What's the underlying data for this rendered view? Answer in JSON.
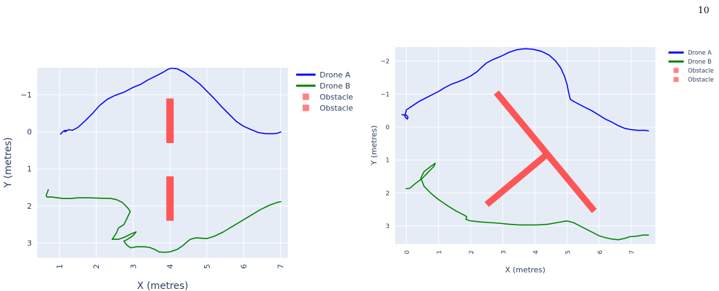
{
  "page_number": "10",
  "chart_data": [
    {
      "type": "line",
      "xlabel": "X (metres)",
      "ylabel": "Y (metres)",
      "xlim": [
        0.4,
        7.2
      ],
      "ylim": [
        3.4,
        -1.73
      ],
      "x_ticks": [
        1,
        2,
        3,
        4,
        5,
        6,
        7
      ],
      "y_ticks": [
        -1,
        0,
        1,
        2,
        3
      ],
      "y_tick_labels": [
        "−1",
        "0",
        "1",
        "2",
        "3"
      ],
      "x_tick_labels_rotated": true,
      "plot_bg": "#e5ecf6",
      "grid": true,
      "legend": "top-right, outside plot",
      "series": [
        {
          "name": "Drone A",
          "color": "#0000ff",
          "points": [
            [
              1.02,
              0.07
            ],
            [
              1.06,
              0.03
            ],
            [
              1.1,
              -0.01
            ],
            [
              1.15,
              -0.04
            ],
            [
              1.2,
              -0.03
            ],
            [
              1.15,
              0.0
            ],
            [
              1.25,
              -0.06
            ],
            [
              1.35,
              -0.04
            ],
            [
              1.5,
              -0.12
            ],
            [
              1.7,
              -0.3
            ],
            [
              1.9,
              -0.5
            ],
            [
              2.1,
              -0.72
            ],
            [
              2.3,
              -0.88
            ],
            [
              2.5,
              -0.98
            ],
            [
              2.75,
              -1.07
            ],
            [
              3.0,
              -1.2
            ],
            [
              3.2,
              -1.28
            ],
            [
              3.4,
              -1.4
            ],
            [
              3.6,
              -1.5
            ],
            [
              3.8,
              -1.6
            ],
            [
              3.95,
              -1.69
            ],
            [
              4.05,
              -1.72
            ],
            [
              4.2,
              -1.7
            ],
            [
              4.4,
              -1.6
            ],
            [
              4.6,
              -1.45
            ],
            [
              4.8,
              -1.3
            ],
            [
              5.0,
              -1.1
            ],
            [
              5.2,
              -0.9
            ],
            [
              5.4,
              -0.68
            ],
            [
              5.6,
              -0.48
            ],
            [
              5.8,
              -0.28
            ],
            [
              6.0,
              -0.15
            ],
            [
              6.2,
              -0.06
            ],
            [
              6.4,
              0.02
            ],
            [
              6.6,
              0.05
            ],
            [
              6.8,
              0.05
            ],
            [
              6.9,
              0.04
            ],
            [
              7.02,
              0.0
            ]
          ]
        },
        {
          "name": "Drone B",
          "color": "#008000",
          "points": [
            [
              0.7,
              1.55
            ],
            [
              0.64,
              1.72
            ],
            [
              0.66,
              1.76
            ],
            [
              0.8,
              1.76
            ],
            [
              0.95,
              1.78
            ],
            [
              1.1,
              1.8
            ],
            [
              1.3,
              1.8
            ],
            [
              1.5,
              1.78
            ],
            [
              1.8,
              1.78
            ],
            [
              2.1,
              1.79
            ],
            [
              2.4,
              1.8
            ],
            [
              2.55,
              1.83
            ],
            [
              2.7,
              1.9
            ],
            [
              2.85,
              2.05
            ],
            [
              2.92,
              2.15
            ],
            [
              2.85,
              2.3
            ],
            [
              2.8,
              2.4
            ],
            [
              2.75,
              2.5
            ],
            [
              2.6,
              2.6
            ],
            [
              2.55,
              2.72
            ],
            [
              2.5,
              2.8
            ],
            [
              2.43,
              2.9
            ],
            [
              2.6,
              2.9
            ],
            [
              2.75,
              2.85
            ],
            [
              2.95,
              2.75
            ],
            [
              3.08,
              2.7
            ],
            [
              3.0,
              2.8
            ],
            [
              2.85,
              2.9
            ],
            [
              2.75,
              2.95
            ],
            [
              2.82,
              3.05
            ],
            [
              2.93,
              3.13
            ],
            [
              3.1,
              3.1
            ],
            [
              3.3,
              3.1
            ],
            [
              3.45,
              3.12
            ],
            [
              3.6,
              3.18
            ],
            [
              3.7,
              3.24
            ],
            [
              3.85,
              3.25
            ],
            [
              4.0,
              3.24
            ],
            [
              4.2,
              3.17
            ],
            [
              4.35,
              3.07
            ],
            [
              4.45,
              2.98
            ],
            [
              4.55,
              2.9
            ],
            [
              4.7,
              2.86
            ],
            [
              4.85,
              2.87
            ],
            [
              5.0,
              2.88
            ],
            [
              5.2,
              2.82
            ],
            [
              5.45,
              2.7
            ],
            [
              5.7,
              2.55
            ],
            [
              5.95,
              2.4
            ],
            [
              6.2,
              2.25
            ],
            [
              6.45,
              2.1
            ],
            [
              6.7,
              1.98
            ],
            [
              6.9,
              1.91
            ],
            [
              7.02,
              1.88
            ]
          ]
        }
      ],
      "obstacles": [
        {
          "name": "Obstacle",
          "color": "#ff4d4d",
          "x": 4.0,
          "y0": -0.9,
          "y1": 0.3,
          "thickness": 0.2
        },
        {
          "name": "Obstacle",
          "color": "#ff4d4d",
          "x": 4.0,
          "y0": 1.2,
          "y1": 2.4,
          "thickness": 0.2
        }
      ]
    },
    {
      "type": "line",
      "xlabel": "X (metres)",
      "ylabel": "Y (metres)",
      "xlim": [
        -0.35,
        7.75
      ],
      "ylim": [
        3.55,
        -2.43
      ],
      "x_ticks": [
        0,
        1,
        2,
        3,
        4,
        5,
        6,
        7
      ],
      "y_ticks": [
        -2,
        -1,
        0,
        1,
        2,
        3
      ],
      "y_tick_labels": [
        "−2",
        "−1",
        "0",
        "1",
        "2",
        "3"
      ],
      "x_tick_labels_rotated": true,
      "plot_bg": "#e5ecf6",
      "grid": true,
      "legend": "top-right, outside plot",
      "series": [
        {
          "name": "Drone A",
          "color": "#0000ff",
          "points": [
            [
              -0.15,
              -0.38
            ],
            [
              0.0,
              -0.36
            ],
            [
              0.05,
              -0.3
            ],
            [
              0.03,
              -0.24
            ],
            [
              -0.05,
              -0.32
            ],
            [
              0.0,
              -0.52
            ],
            [
              0.2,
              -0.65
            ],
            [
              0.4,
              -0.78
            ],
            [
              0.6,
              -0.88
            ],
            [
              0.8,
              -0.98
            ],
            [
              1.0,
              -1.08
            ],
            [
              1.2,
              -1.2
            ],
            [
              1.4,
              -1.3
            ],
            [
              1.6,
              -1.37
            ],
            [
              1.8,
              -1.45
            ],
            [
              2.0,
              -1.55
            ],
            [
              2.2,
              -1.68
            ],
            [
              2.35,
              -1.82
            ],
            [
              2.5,
              -1.95
            ],
            [
              2.7,
              -2.05
            ],
            [
              2.95,
              -2.15
            ],
            [
              3.2,
              -2.27
            ],
            [
              3.45,
              -2.35
            ],
            [
              3.7,
              -2.38
            ],
            [
              3.95,
              -2.36
            ],
            [
              4.2,
              -2.3
            ],
            [
              4.45,
              -2.18
            ],
            [
              4.65,
              -2.0
            ],
            [
              4.8,
              -1.8
            ],
            [
              4.92,
              -1.55
            ],
            [
              5.0,
              -1.3
            ],
            [
              5.05,
              -1.05
            ],
            [
              5.1,
              -0.85
            ],
            [
              5.2,
              -0.78
            ],
            [
              5.4,
              -0.68
            ],
            [
              5.6,
              -0.58
            ],
            [
              5.8,
              -0.48
            ],
            [
              6.0,
              -0.36
            ],
            [
              6.2,
              -0.24
            ],
            [
              6.4,
              -0.15
            ],
            [
              6.6,
              -0.04
            ],
            [
              6.8,
              0.04
            ],
            [
              7.0,
              0.08
            ],
            [
              7.2,
              0.1
            ],
            [
              7.45,
              0.1
            ],
            [
              7.55,
              0.12
            ]
          ]
        },
        {
          "name": "Drone B",
          "color": "#008000",
          "points": [
            [
              -0.02,
              1.87
            ],
            [
              0.1,
              1.86
            ],
            [
              0.3,
              1.7
            ],
            [
              0.5,
              1.55
            ],
            [
              0.7,
              1.35
            ],
            [
              0.85,
              1.2
            ],
            [
              0.9,
              1.1
            ],
            [
              0.75,
              1.2
            ],
            [
              0.55,
              1.35
            ],
            [
              0.45,
              1.55
            ],
            [
              0.55,
              1.8
            ],
            [
              0.75,
              2.0
            ],
            [
              1.0,
              2.2
            ],
            [
              1.3,
              2.4
            ],
            [
              1.55,
              2.55
            ],
            [
              1.75,
              2.65
            ],
            [
              1.88,
              2.72
            ],
            [
              1.85,
              2.8
            ],
            [
              2.0,
              2.85
            ],
            [
              2.3,
              2.88
            ],
            [
              2.6,
              2.9
            ],
            [
              2.9,
              2.92
            ],
            [
              3.2,
              2.95
            ],
            [
              3.5,
              2.97
            ],
            [
              3.8,
              2.97
            ],
            [
              4.1,
              2.97
            ],
            [
              4.4,
              2.95
            ],
            [
              4.7,
              2.9
            ],
            [
              5.0,
              2.85
            ],
            [
              5.2,
              2.9
            ],
            [
              5.4,
              3.0
            ],
            [
              5.6,
              3.1
            ],
            [
              5.8,
              3.2
            ],
            [
              6.0,
              3.3
            ],
            [
              6.2,
              3.36
            ],
            [
              6.4,
              3.4
            ],
            [
              6.6,
              3.42
            ],
            [
              6.8,
              3.38
            ],
            [
              6.95,
              3.33
            ],
            [
              7.1,
              3.32
            ],
            [
              7.25,
              3.3
            ],
            [
              7.35,
              3.28
            ],
            [
              7.55,
              3.28
            ]
          ]
        }
      ],
      "obstacles": [
        {
          "name": "Obstacle",
          "color": "#ff4d4d",
          "x0": 2.8,
          "y0": -1.05,
          "x1": 5.85,
          "y1": 2.55,
          "thickness": 0.2
        },
        {
          "name": "Obstacle",
          "color": "#ff4d4d",
          "x0": 2.5,
          "y0": 2.35,
          "x1": 4.35,
          "y1": 0.85,
          "thickness": 0.2
        }
      ]
    }
  ]
}
